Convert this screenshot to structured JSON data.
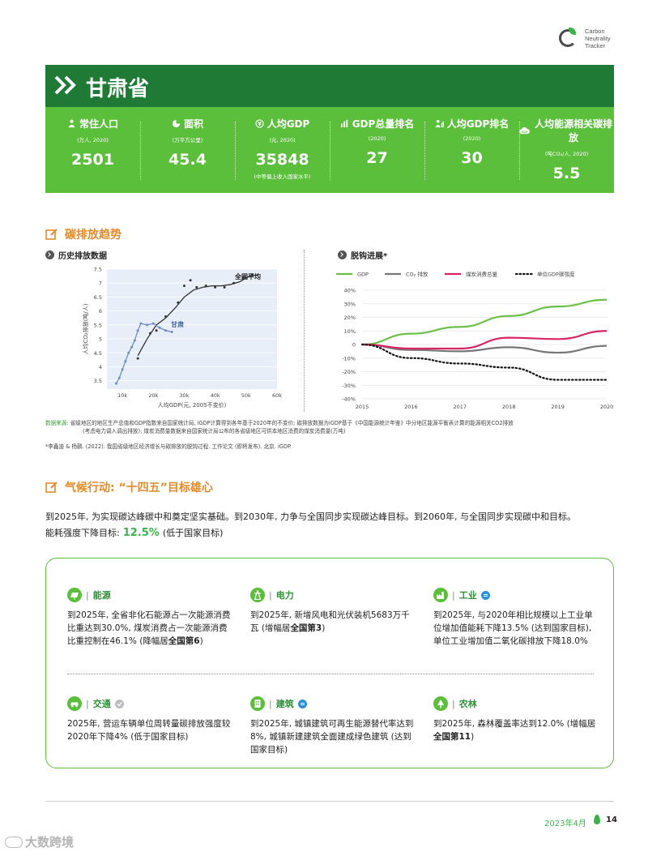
{
  "logo": {
    "line1": "Carbon",
    "line2": "Neutrality",
    "line3": "Tracker"
  },
  "header": {
    "title": "甘肃省"
  },
  "stats": [
    {
      "icon": "people-icon",
      "label": "常住人口",
      "unit": "(万人, 2020)",
      "value": "2501",
      "note": ""
    },
    {
      "icon": "area-icon",
      "label": "面积",
      "unit": "(万平方公里)",
      "value": "45.4",
      "note": ""
    },
    {
      "icon": "yuan-icon",
      "label": "人均GDP",
      "unit": "(元, 2020)",
      "value": "35848",
      "note": "(中等偏上收入国家水平)"
    },
    {
      "icon": "bar-chart-icon",
      "label": "GDP总量排名",
      "unit": "(2020)",
      "value": "27",
      "note": ""
    },
    {
      "icon": "person-rank-icon",
      "label": "人均GDP排名",
      "unit": "(2020)",
      "value": "30",
      "note": ""
    },
    {
      "icon": "co2-cloud-icon",
      "label": "人均能源相关碳排放",
      "unit": "(吨CO₂/人, 2020)",
      "value": "5.5",
      "note": ""
    }
  ],
  "section1": {
    "title": "碳排放趋势"
  },
  "history": {
    "subtitle": "历史排放数据",
    "ylabel": "人均CO₂排放(吨/人)",
    "xlabel": "人均GDP(元, 2005不变价)",
    "national_label": "全国平均",
    "province_label": "甘肃"
  },
  "decoupling": {
    "subtitle": "脱钩进展*"
  },
  "chart_data": [
    {
      "type": "scatter",
      "title": "历史排放数据",
      "xlabel": "人均GDP(元, 2005不变价)",
      "ylabel": "人均CO₂排放(吨/人)",
      "xlim": [
        5000,
        60000
      ],
      "ylim": [
        3.2,
        7.5
      ],
      "xticks": [
        "10k",
        "20k",
        "30k",
        "40k",
        "50k",
        "60k"
      ],
      "yticks": [
        "3.5",
        "4",
        "4.5",
        "5",
        "5.5",
        "6",
        "6.5",
        "7",
        "7.5"
      ],
      "series": [
        {
          "name": "全国平均",
          "color": "#333333",
          "x": [
            15000,
            18000,
            21000,
            24000,
            27000,
            30000,
            33000,
            36000,
            39000,
            42000,
            45000,
            48000,
            51000,
            54000
          ],
          "y": [
            4.4,
            5.0,
            5.5,
            5.75,
            6.1,
            6.5,
            6.75,
            6.85,
            6.9,
            6.9,
            6.95,
            7.05,
            7.25,
            7.3
          ],
          "markers_x": [
            15000,
            19000,
            21000,
            24000,
            28000,
            30000,
            32000,
            34000,
            37000,
            40000,
            43000,
            46000,
            49000,
            52000
          ],
          "markers_y": [
            4.3,
            5.2,
            5.3,
            5.8,
            6.3,
            6.9,
            7.1,
            6.85,
            6.9,
            6.85,
            6.85,
            7.0,
            7.2,
            7.3
          ]
        },
        {
          "name": "甘肃",
          "color": "#6c8ebf",
          "x": [
            8000,
            9000,
            10000,
            11000,
            12000,
            13000,
            14000,
            15000,
            16000,
            18000,
            20000,
            22000,
            24000,
            26000
          ],
          "y": [
            3.4,
            3.6,
            3.9,
            4.2,
            4.5,
            4.7,
            4.95,
            5.3,
            5.55,
            5.5,
            5.55,
            5.4,
            5.3,
            5.25
          ]
        }
      ],
      "background": "#e8eef7"
    },
    {
      "type": "line",
      "title": "脱钩进展*",
      "x": [
        2015,
        2016,
        2017,
        2018,
        2019,
        2020
      ],
      "xticks": [
        "2015",
        "2016",
        "2017",
        "2018",
        "2019",
        "2020"
      ],
      "ylim": [
        -40,
        40
      ],
      "yticks": [
        "-40%",
        "-30%",
        "-20%",
        "-10%",
        "0",
        "10%",
        "20%",
        "30%",
        "40%"
      ],
      "series": [
        {
          "name": "GDP",
          "color": "#6cc04a",
          "style": "solid",
          "values": [
            0,
            8,
            13,
            21,
            28,
            33
          ]
        },
        {
          "name": "CO₂ 排放",
          "color": "#777777",
          "style": "solid",
          "values": [
            0,
            -4,
            -5,
            -2,
            -6,
            -1
          ]
        },
        {
          "name": "煤炭消费总量",
          "color": "#d6255f",
          "style": "solid",
          "values": [
            0,
            -3,
            -3,
            5,
            4,
            10
          ]
        },
        {
          "name": "单位GDP碳强度",
          "color": "#111111",
          "style": "dotted",
          "values": [
            0,
            -10,
            -14,
            -17,
            -26,
            -26
          ]
        }
      ],
      "legend_position": "top",
      "grid": true
    }
  ],
  "source": {
    "label": "数据来源:",
    "text": "省级地区的地区生产总值和GDP指数来自国家统计局, iGDP计算得到各年基于2020年的不变价; 碳排放数据为iGDP基于《中国能源统计年鉴》中分地区能源平衡表计算的能源相关CO2排放",
    "text2": "(考虑电力调入调出排放); 煤炭消费量数据来自国家统计局公布的各省级地区可供本地区消费的煤炭消费量(万吨)",
    "footnote": "*李鑫迪 & 杨鹂. (2022). 我国省级地区经济增长与碳排放的脱钩过程. 工作论文 (即将发布). 北京. iGDP."
  },
  "section2": {
    "title": "气候行动: “十四五”目标雄心"
  },
  "intro": {
    "line1": "到2025年, 为实现碳达峰碳中和奠定坚实基础。到2030年, 力争与全国同步实现碳达峰目标。到2060年, 与全国同步实现碳中和目标。",
    "energy_label": "能耗强度下降目标:",
    "energy_value": "12.5%",
    "energy_note": "(低于国家目标)"
  },
  "goals": {
    "energy": {
      "title": "能源",
      "text_a": "到2025年, 全省非化石能源占一次能源消费比重达到30.0%, 煤炭消费占一次能源消费比重控制在46.1% (降幅居",
      "bold": "全国第6",
      "text_b": ")"
    },
    "power": {
      "title": "电力",
      "text_a": "到2025年, 新增风电和光伏装机5683万千瓦 (增幅居",
      "bold": "全国第3",
      "text_b": ")"
    },
    "industry": {
      "title": "工业",
      "text_a": "到2025年, 与2020年相比规模以上工业单位增加值能耗下降13.5% (达到国家目标), 单位工业增加值二氧化碳排放下降18.0%",
      "bold": "",
      "text_b": ""
    },
    "transport": {
      "title": "交通",
      "text_a": "2025年, 营运车辆单位周转量碳排放强度较2020年下降4% (低于国家目标)",
      "bold": "",
      "text_b": ""
    },
    "building": {
      "title": "建筑",
      "text_a": "到2025年, 城镇建筑可再生能源替代率达到8%, 城镇新建建筑全面建成绿色建筑 (达到国家目标)",
      "bold": "",
      "text_b": ""
    },
    "agriculture": {
      "title": "农林",
      "text_a": "到2025年, 森林覆盖率达到12.0% (增幅居",
      "bold": "全国第11",
      "text_b": ")"
    }
  },
  "footer": {
    "date": "2023年4月",
    "page": "14"
  },
  "watermark": {
    "text": "大数跨境"
  }
}
